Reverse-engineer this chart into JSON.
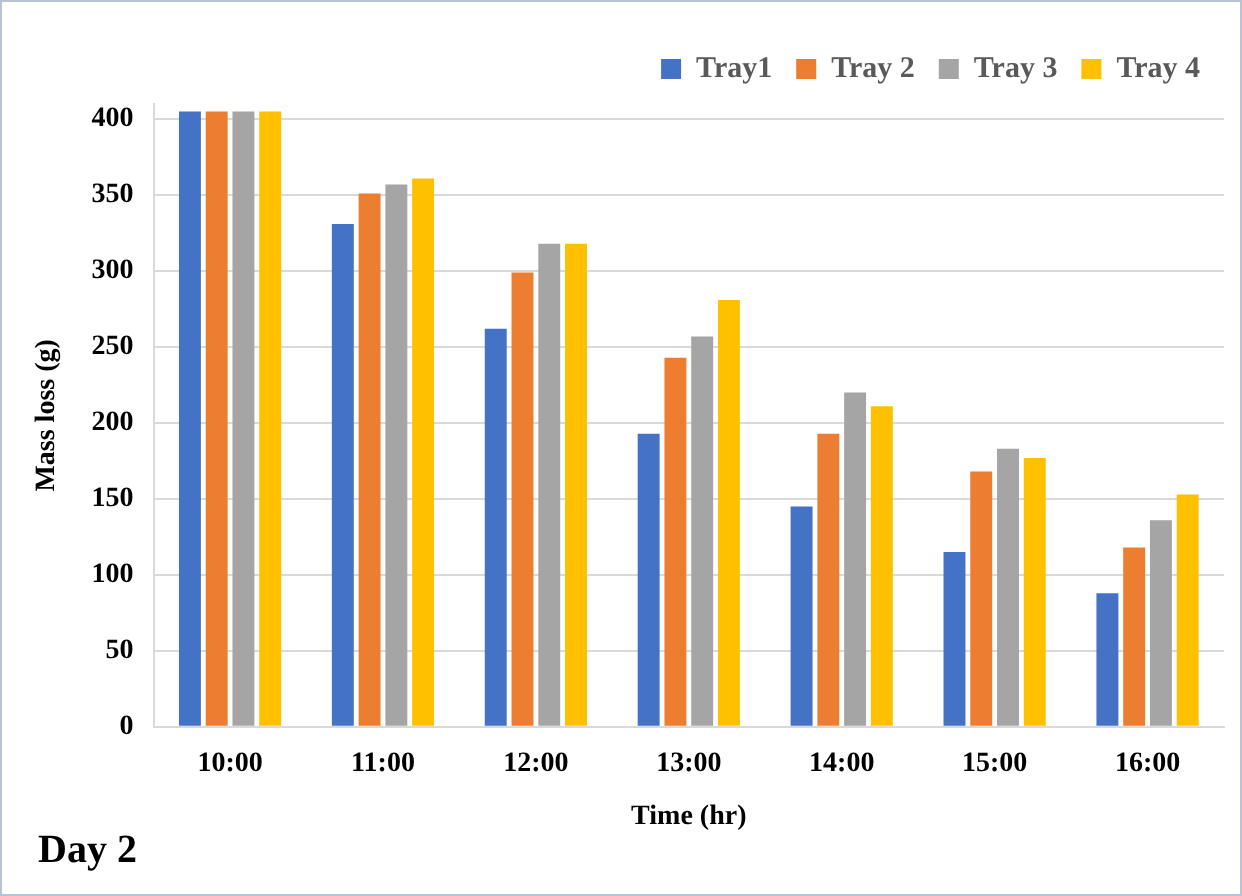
{
  "chart_data": {
    "type": "bar",
    "xlabel": "Time (hr)",
    "ylabel": "Mass loss (g)",
    "categories": [
      "10:00",
      "11:00",
      "12:00",
      "13:00",
      "14:00",
      "15:00",
      "16:00"
    ],
    "series": [
      {
        "name": "Tray1",
        "color": "#4472c4",
        "values": [
          405,
          331,
          262,
          193,
          145,
          115,
          88
        ]
      },
      {
        "name": "Tray 2",
        "color": "#ed7d31",
        "values": [
          405,
          351,
          299,
          243,
          193,
          168,
          118
        ]
      },
      {
        "name": "Tray 3",
        "color": "#a5a5a5",
        "values": [
          405,
          357,
          318,
          257,
          220,
          183,
          136
        ]
      },
      {
        "name": "Tray 4",
        "color": "#ffc000",
        "values": [
          405,
          361,
          318,
          281,
          211,
          177,
          153
        ]
      }
    ],
    "ylim": [
      0,
      410
    ],
    "yticks": [
      0,
      50,
      100,
      150,
      200,
      250,
      300,
      350,
      400
    ],
    "grid": "y",
    "legend": "top right",
    "annotations": [
      "Day 2"
    ]
  }
}
